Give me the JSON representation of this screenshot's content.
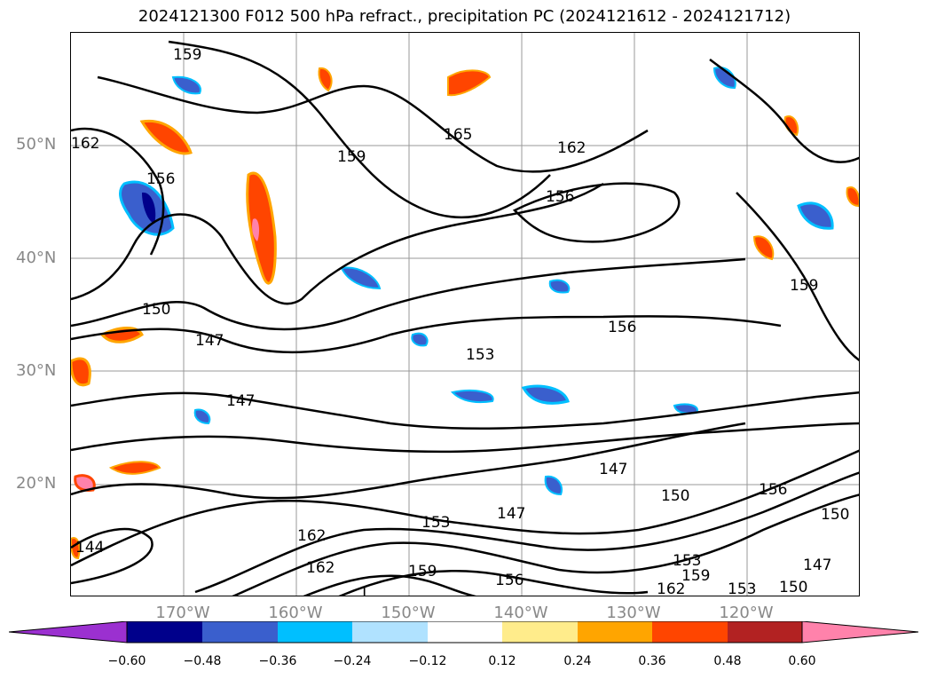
{
  "title": "2024121300 F012 500 hPa refract., precipitation PC (2024121612 - 2024121712)",
  "map": {
    "lat_labels": [
      "50°N",
      "40°N",
      "30°N",
      "20°N"
    ],
    "lon_labels": [
      "170°W",
      "160°W",
      "150°W",
      "140°W",
      "130°W",
      "120°W"
    ],
    "contour_labels": [
      "159",
      "162",
      "165",
      "162",
      "156",
      "159",
      "156",
      "150",
      "147",
      "147",
      "153",
      "156",
      "147",
      "150",
      "156",
      "150",
      "147",
      "153",
      "159",
      "156",
      "162",
      "162",
      "153",
      "159",
      "162",
      "153",
      "150",
      "147",
      "144",
      "159",
      "1"
    ]
  },
  "colorbar": {
    "ticks": [
      "−0.60",
      "−0.48",
      "−0.36",
      "−0.24",
      "−0.12",
      "0.12",
      "0.24",
      "0.36",
      "0.48",
      "0.60"
    ],
    "colors": {
      "lt_-0.60": "#9b30d0",
      "-0.60_-0.48": "#00008b",
      "-0.48_-0.36": "#3a5fcd",
      "-0.36_-0.24": "#00bfff",
      "-0.24_-0.12": "#b0e2ff",
      "-0.12_0.12": "#ffffff",
      "0.12_0.24": "#ffec8b",
      "0.24_0.36": "#ffa500",
      "0.36_0.48": "#ff4500",
      "0.48_0.60": "#b22222",
      "gt_0.60": "#ff82ab"
    }
  }
}
